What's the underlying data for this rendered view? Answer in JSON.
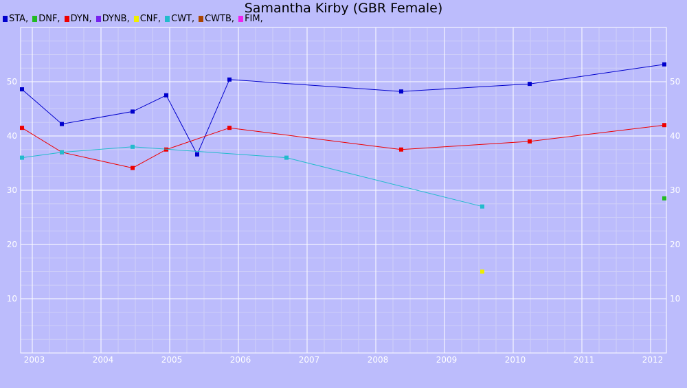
{
  "chart_data": {
    "type": "line",
    "title": "Samantha Kirby (GBR Female)",
    "xlabel": "",
    "ylabel": "",
    "x_ticks": [
      "2003",
      "2004",
      "2005",
      "2006",
      "2007",
      "2008",
      "2009",
      "2010",
      "2011",
      "2012"
    ],
    "y_ticks": [
      10,
      20,
      30,
      40,
      50
    ],
    "xlim": [
      2002.83,
      2012.23
    ],
    "ylim": [
      0,
      60
    ],
    "grid": true,
    "legend_position": "top-left",
    "series": [
      {
        "name": "STA",
        "color": "#0000cc",
        "points": [
          {
            "x": 2002.85,
            "y": 48.6
          },
          {
            "x": 2003.43,
            "y": 42.2
          },
          {
            "x": 2004.46,
            "y": 44.5
          },
          {
            "x": 2004.95,
            "y": 47.5
          },
          {
            "x": 2005.4,
            "y": 36.6
          },
          {
            "x": 2005.87,
            "y": 50.4
          },
          {
            "x": 2008.37,
            "y": 48.2
          },
          {
            "x": 2010.24,
            "y": 49.6
          },
          {
            "x": 2012.2,
            "y": 53.2
          }
        ]
      },
      {
        "name": "DNF",
        "color": "#22bb22",
        "points": [
          {
            "x": 2012.2,
            "y": 28.5
          }
        ]
      },
      {
        "name": "DYN",
        "color": "#ee0000",
        "points": [
          {
            "x": 2002.85,
            "y": 41.5
          },
          {
            "x": 2003.43,
            "y": 37.0
          },
          {
            "x": 2004.46,
            "y": 34.1
          },
          {
            "x": 2004.95,
            "y": 37.5
          },
          {
            "x": 2005.87,
            "y": 41.5
          },
          {
            "x": 2008.37,
            "y": 37.5
          },
          {
            "x": 2010.24,
            "y": 39.0
          },
          {
            "x": 2012.2,
            "y": 42.0
          }
        ]
      },
      {
        "name": "DYNB",
        "color": "#7722ee",
        "points": []
      },
      {
        "name": "CNF",
        "color": "#eeee00",
        "points": [
          {
            "x": 2009.55,
            "y": 15.0
          }
        ]
      },
      {
        "name": "CWT",
        "color": "#22bbcc",
        "points": [
          {
            "x": 2002.85,
            "y": 36.0
          },
          {
            "x": 2003.43,
            "y": 37.0
          },
          {
            "x": 2004.46,
            "y": 38.0
          },
          {
            "x": 2006.7,
            "y": 36.0
          },
          {
            "x": 2009.55,
            "y": 27.0
          }
        ]
      },
      {
        "name": "CWTB",
        "color": "#aa4400",
        "points": []
      },
      {
        "name": "FIM",
        "color": "#ee22ee",
        "points": []
      }
    ]
  }
}
